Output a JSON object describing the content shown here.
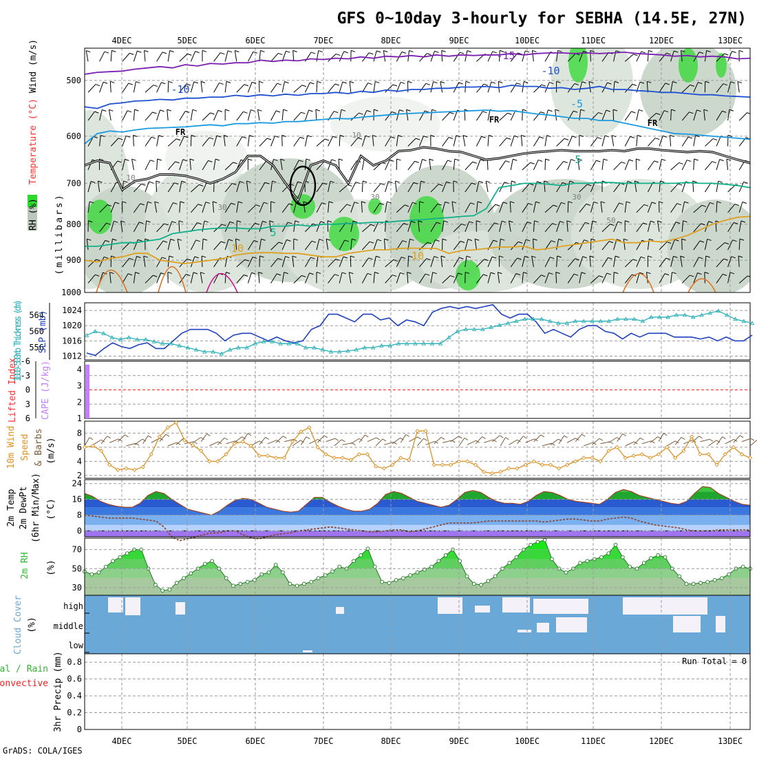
{
  "title": "GFS 0~10day 3-hourly for SEBHA (14.5E, 27N)",
  "footer": "GrADS: COLA/IGES",
  "colors": {
    "rh_green": "#2fd82f",
    "rh_gray": "#bcc8bc",
    "temperature_isotherm": "#1e4fd0",
    "freezing_line": "#000000",
    "slp": "#1f3fbf",
    "thickness": "#2bb0b8",
    "cape": "#c080ff",
    "lifted_index": "#ff2020",
    "wind_speed": "#e09020",
    "wind_barbs": "#7a5c3a",
    "temp_fill": "#2fb82f",
    "dewpoint": "#8a4a3a",
    "rh2m": "#2fd82f",
    "cloud": "#6aa8d8",
    "cloud_clear": "#f4f2f8",
    "precip_total": "#2fd82f",
    "precip_convective": "#ff2020"
  },
  "chart_data": [
    {
      "id": "upper_air",
      "type": "heatmap",
      "y_label_parts": [
        "RH (%)",
        "Temperature (°C)",
        "Wind (m/s)"
      ],
      "y_label_mb": "(millibars)",
      "ylim": [
        450,
        1000
      ],
      "y_ticks": [
        500,
        600,
        700,
        800,
        900,
        1000
      ],
      "y_scale": "log-pressure",
      "categories": [
        "4DEC",
        "5DEC",
        "6DEC",
        "7DEC",
        "8DEC",
        "9DEC",
        "10DEC",
        "11DEC",
        "12DEC",
        "13DEC"
      ],
      "isotherms": [
        {
          "label": "-15",
          "values": [
            490,
            487,
            486,
            485,
            482,
            480,
            478,
            480,
            475,
            477,
            473,
            474,
            472,
            472,
            468,
            470,
            468,
            469,
            466,
            467,
            465,
            466,
            463,
            465,
            462,
            463,
            461,
            463,
            460,
            462,
            460,
            461,
            460,
            460,
            458,
            460,
            458,
            457,
            457,
            458,
            457,
            458,
            457,
            456,
            458,
            459,
            460,
            462,
            461,
            463,
            462,
            463,
            466,
            465
          ]
        },
        {
          "label": "-10",
          "values": [
            545,
            548,
            540,
            538,
            535,
            534,
            532,
            533,
            530,
            530,
            528,
            528,
            525,
            527,
            524,
            526,
            523,
            525,
            522,
            522,
            520,
            522,
            518,
            520,
            516,
            518,
            515,
            515,
            513,
            513,
            511,
            511,
            510,
            512,
            508,
            510,
            510,
            513,
            512,
            515,
            513,
            510,
            515,
            515,
            517,
            518,
            520,
            520,
            522,
            524,
            524,
            526,
            527,
            528
          ]
        },
        {
          "label": "-5",
          "values": [
            615,
            595,
            590,
            592,
            588,
            585,
            584,
            583,
            582,
            580,
            578,
            580,
            576,
            576,
            574,
            575,
            572,
            572,
            570,
            568,
            566,
            567,
            564,
            562,
            560,
            558,
            557,
            556,
            555,
            554,
            553,
            552,
            551,
            553,
            552,
            555,
            558,
            560,
            563,
            566,
            566,
            570,
            570,
            575,
            580,
            585,
            590,
            595,
            596,
            598,
            600,
            602,
            604,
            606
          ]
        },
        {
          "label": "5",
          "values": [
            860,
            860,
            855,
            850,
            850,
            845,
            840,
            825,
            820,
            815,
            812,
            810,
            810,
            812,
            812,
            805,
            805,
            802,
            805,
            800,
            800,
            798,
            797,
            795,
            795,
            792,
            790,
            788,
            785,
            783,
            780,
            778,
            760,
            710,
            705,
            700,
            700,
            702,
            705,
            700,
            700,
            698,
            698,
            700,
            700,
            700,
            700,
            700,
            698,
            700,
            700,
            702,
            705,
            710
          ]
        },
        {
          "label": "10",
          "values": [
            900,
            905,
            895,
            890,
            880,
            880,
            900,
            905,
            910,
            905,
            900,
            895,
            885,
            880,
            878,
            878,
            880,
            880,
            885,
            890,
            890,
            880,
            875,
            870,
            870,
            866,
            865,
            866,
            866,
            880,
            872,
            870,
            866,
            862,
            862,
            860,
            870,
            866,
            860,
            855,
            850,
            845,
            840,
            850,
            850,
            845,
            848,
            840,
            830,
            815,
            800,
            790,
            782,
            780
          ]
        }
      ],
      "freezing_line": {
        "label": "FR",
        "values": [
          660,
          650,
          655,
          715,
          695,
          690,
          680,
          680,
          683,
          690,
          700,
          690,
          675,
          640,
          640,
          660,
          700,
          740,
          660,
          650,
          660,
          700,
          640,
          660,
          650,
          630,
          628,
          622,
          625,
          630,
          632,
          640,
          648,
          645,
          640,
          635,
          632,
          630,
          628,
          630,
          630,
          630,
          628,
          630,
          625,
          625,
          628,
          630,
          632,
          630,
          632,
          640,
          648,
          655
        ]
      },
      "rh_levels": [
        10,
        30,
        50,
        70
      ],
      "rh_contour_labels": [
        "10",
        "30",
        "50"
      ]
    },
    {
      "id": "slp_thickness",
      "type": "line",
      "left_label": "1000-500mb Thickness (dm)",
      "right_label": "SLP (mb)",
      "slp_ticks": [
        1012,
        1016,
        1020,
        1024
      ],
      "slp_ylim": [
        1011,
        1026
      ],
      "thickness_ticks": [
        556,
        560,
        564
      ],
      "thickness_ylim": [
        553,
        567
      ],
      "slp": [
        1012.8,
        1012.2,
        1014,
        1015.5,
        1014.5,
        1014,
        1015,
        1015.5,
        1014,
        1014,
        1016,
        1018,
        1019,
        1019,
        1019,
        1018,
        1016,
        1017.5,
        1018,
        1018,
        1017,
        1016,
        1017,
        1016,
        1015.5,
        1016,
        1019,
        1020,
        1023,
        1023,
        1022,
        1021,
        1023,
        1023,
        1021.5,
        1022,
        1020,
        1021.5,
        1021,
        1020,
        1023.5,
        1024.5,
        1025,
        1024.5,
        1025,
        1024.5,
        1025,
        1025.5,
        1023,
        1022,
        1023,
        1023,
        1021,
        1018,
        1019,
        1018,
        1017,
        1019,
        1020,
        1020,
        1018.5,
        1018,
        1016.5,
        1018,
        1017,
        1018,
        1018,
        1018,
        1017,
        1017,
        1017,
        1016.5,
        1017,
        1016,
        1017,
        1016,
        1016,
        1017.5
      ],
      "thickness": [
        559,
        560,
        559.5,
        558.5,
        558,
        558.5,
        558,
        558,
        557.5,
        557,
        557,
        556.5,
        556,
        555.5,
        555,
        555,
        554.5,
        555.5,
        556,
        556,
        557,
        557.5,
        557.5,
        557,
        557,
        557,
        556,
        556,
        555.5,
        555,
        555,
        555.2,
        555.5,
        556,
        556,
        556.5,
        556.5,
        557,
        557,
        557,
        557,
        557,
        557,
        558.5,
        560,
        560.5,
        560.5,
        560.5,
        561,
        561.5,
        562,
        562.5,
        563,
        563,
        563,
        562.5,
        562,
        562,
        562.5,
        562.5,
        562.5,
        562.5,
        562.5,
        563,
        563,
        563,
        562.5,
        563.5,
        563.5,
        563.5,
        564,
        564,
        563.5,
        564,
        564.5,
        565,
        564,
        563,
        562.5,
        562
      ]
    },
    {
      "id": "stability",
      "type": "bar",
      "left_label": "Lifted Index",
      "right_label": "CAPE (J/kg)",
      "li_ticks": [
        "-6",
        "-3",
        "0",
        "3",
        "6"
      ],
      "li_ylim": [
        -6,
        6
      ],
      "cape_ticks": [
        "1",
        "2",
        "3",
        "4"
      ],
      "cape_ylim": [
        1,
        4.5
      ],
      "cape": [
        4.3
      ],
      "lifted_index_zero": 0
    },
    {
      "id": "wind_10m",
      "type": "line",
      "label_1": "10m Wind",
      "label_2": "Speed",
      "label_3": "& Barbs",
      "unit": "(m/s)",
      "y_ticks": [
        2,
        4,
        6,
        8
      ],
      "ylim": [
        1.6,
        9.7
      ],
      "speed": [
        6,
        6.2,
        5.5,
        3.5,
        2.8,
        3,
        2.8,
        3.2,
        5,
        7.5,
        8.8,
        9.5,
        7,
        6.3,
        5.5,
        4,
        4,
        5,
        6.5,
        6.8,
        6.2,
        4.8,
        4.8,
        4.5,
        4.5,
        6.8,
        8.2,
        8.8,
        6,
        5,
        4.5,
        4.5,
        4.2,
        5,
        5,
        3.3,
        3,
        3.5,
        4.5,
        4.2,
        8.3,
        8.3,
        3.5,
        3.5,
        3.5,
        4,
        4,
        3.5,
        2.5,
        2.3,
        2.5,
        3,
        3,
        3.5,
        4,
        3.5,
        3.5,
        3,
        3.5,
        4,
        4.5,
        4.5,
        4,
        5.5,
        6,
        4.5,
        4.8,
        5,
        4.5,
        5,
        6,
        4.5,
        5.5,
        7.5,
        5,
        5,
        3.5,
        5,
        6,
        5,
        4.5
      ]
    },
    {
      "id": "temp_2m",
      "type": "area",
      "label_1": "2m Temp",
      "label_2": "2m DewPt",
      "label_3": "(6hr Min/Max)",
      "unit": "(°C)",
      "y_ticks": [
        0,
        8,
        16,
        24
      ],
      "ylim": [
        -3,
        26
      ],
      "temperature": [
        19,
        17.5,
        15,
        13.5,
        12.5,
        12,
        12,
        14,
        18,
        20,
        19,
        16,
        13.5,
        11,
        10,
        9,
        8,
        10,
        13,
        15.5,
        16.5,
        16,
        14,
        12,
        11,
        10,
        9.5,
        10,
        13.5,
        17,
        17,
        14.5,
        12.5,
        11,
        10,
        10,
        11,
        14,
        18.5,
        20,
        19,
        17,
        15,
        14,
        13,
        12,
        13,
        16,
        19.5,
        20.5,
        19.5,
        17,
        15,
        14,
        14,
        13.5,
        15,
        18,
        20,
        19.5,
        18,
        16,
        15,
        14.5,
        14,
        13.5,
        16,
        19.5,
        21,
        20,
        18,
        17,
        16,
        15,
        14,
        13.5,
        15,
        19,
        22.5,
        22,
        19,
        17,
        15,
        13.5,
        13
      ],
      "dewpoint": [
        8,
        7.5,
        7,
        6.5,
        6.5,
        6.5,
        6.5,
        6,
        5.5,
        5,
        2,
        -3,
        -5,
        -4,
        -3,
        -2,
        -1,
        -1,
        0,
        0,
        -2,
        -3.5,
        -4,
        -3,
        -2,
        -1.5,
        -1,
        0,
        0.5,
        1,
        1.5,
        2,
        1.5,
        1,
        0.5,
        0,
        -0.5,
        -0.5,
        0,
        0.5,
        0.5,
        -0.5,
        0,
        1,
        2,
        3,
        4,
        4,
        4,
        4,
        4.5,
        5,
        5,
        5,
        5,
        5,
        5,
        5,
        4.5,
        5,
        5.5,
        6,
        6,
        5.5,
        5,
        5,
        6,
        6.5,
        7,
        6.5,
        5,
        4,
        3,
        2.5,
        2,
        1.5,
        0.5,
        0,
        0,
        0,
        0.5,
        0.5,
        0.5,
        0.5,
        0.5
      ]
    },
    {
      "id": "rh_2m",
      "type": "area",
      "label": "2m RH",
      "unit": "(%)",
      "y_ticks": [
        30,
        50,
        70
      ],
      "ylim": [
        22,
        82
      ],
      "values": [
        47,
        44,
        46,
        52,
        58,
        62,
        66,
        70,
        70,
        50,
        33,
        27,
        28,
        35,
        40,
        45,
        50,
        55,
        58,
        50,
        40,
        32,
        34,
        36,
        38,
        44,
        46,
        54,
        46,
        34,
        32,
        34,
        36,
        40,
        43,
        47,
        52,
        50,
        58,
        64,
        71,
        52,
        36,
        35,
        38,
        40,
        43,
        46,
        49,
        52,
        58,
        64,
        70,
        58,
        42,
        34,
        33,
        37,
        42,
        50,
        56,
        62,
        70,
        75,
        78,
        80,
        60,
        50,
        46,
        50,
        56,
        58,
        60,
        62,
        66,
        75,
        62,
        52,
        50,
        56,
        61,
        64,
        62,
        50,
        42,
        34,
        34,
        35,
        36,
        38,
        40,
        44,
        50,
        52,
        50
      ]
    },
    {
      "id": "cloud_cover",
      "type": "heatmap",
      "label": "Cloud Cover",
      "unit": "(%)",
      "layers": [
        "high",
        "middle",
        "low"
      ]
    },
    {
      "id": "precip",
      "type": "bar",
      "label_1": "Total / Rain",
      "label_2": "Convective",
      "unit": "3hr Precip (mm)",
      "y_ticks": [
        "0",
        "0.2",
        "0.4",
        "0.6",
        "0.8"
      ],
      "ylim": [
        0,
        0.9
      ],
      "run_total_label": "Run Total = 0",
      "values": []
    }
  ]
}
